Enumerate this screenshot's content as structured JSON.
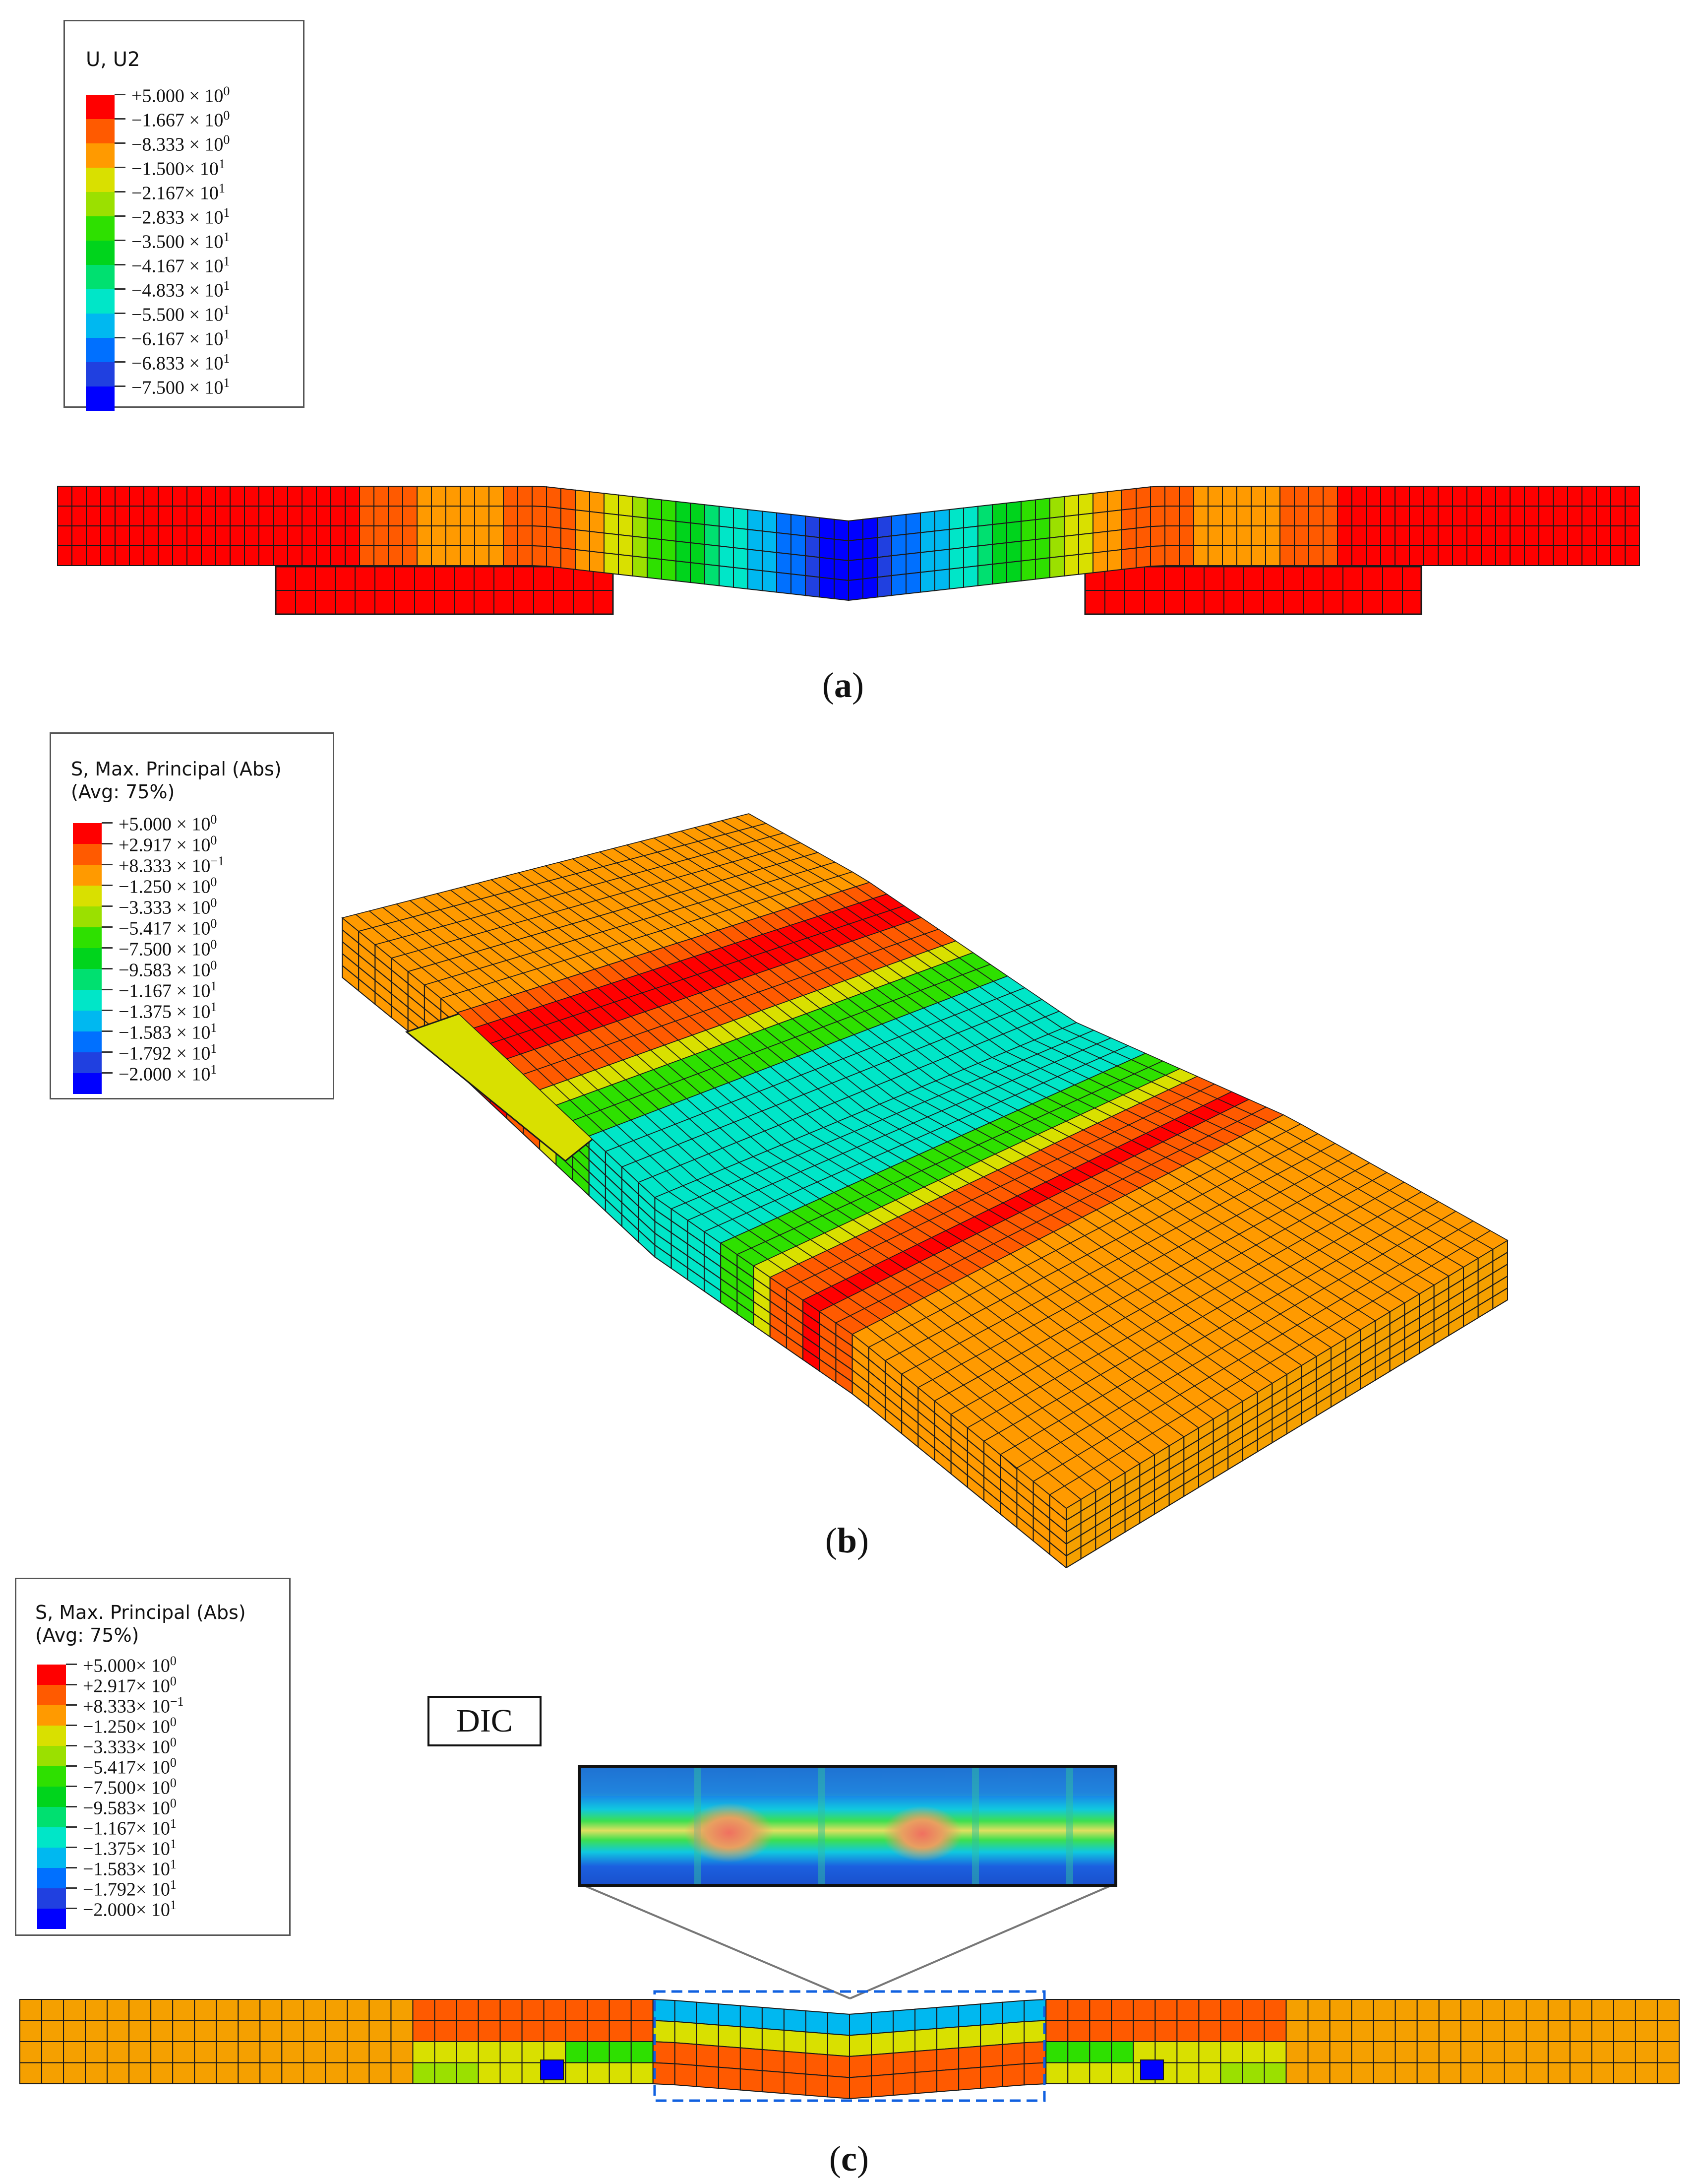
{
  "panel_a": {
    "legend_title": "U, U2",
    "legend_entries": [
      {
        "label": "+5.000 × 10",
        "exp": "0"
      },
      {
        "label": "−1.667 × 10",
        "exp": "0"
      },
      {
        "label": "−8.333 × 10",
        "exp": "0"
      },
      {
        "label": "−1.500× 10",
        "exp": "1"
      },
      {
        "label": "−2.167× 10",
        "exp": "1"
      },
      {
        "label": "−2.833 × 10",
        "exp": "1"
      },
      {
        "label": "−3.500 × 10",
        "exp": "1"
      },
      {
        "label": "−4.167 × 10",
        "exp": "1"
      },
      {
        "label": "−4.833 × 10",
        "exp": "1"
      },
      {
        "label": "−5.500 × 10",
        "exp": "1"
      },
      {
        "label": "−6.167 × 10",
        "exp": "1"
      },
      {
        "label": "−6.833 × 10",
        "exp": "1"
      },
      {
        "label": "−7.500 × 10",
        "exp": "1"
      }
    ],
    "label": "a"
  },
  "panel_b": {
    "legend_title": "S, Max. Principal (Abs)\n(Avg: 75%)",
    "legend_entries": [
      {
        "label": "+5.000 × 10",
        "exp": "0"
      },
      {
        "label": "+2.917 × 10",
        "exp": "0"
      },
      {
        "label": "+8.333 × 10",
        "exp": "−1"
      },
      {
        "label": "−1.250 × 10",
        "exp": "0"
      },
      {
        "label": "−3.333 × 10",
        "exp": "0"
      },
      {
        "label": "−5.417 × 10",
        "exp": "0"
      },
      {
        "label": "−7.500 × 10",
        "exp": "0"
      },
      {
        "label": "−9.583 × 10",
        "exp": "0"
      },
      {
        "label": "−1.167 × 10",
        "exp": "1"
      },
      {
        "label": "−1.375 × 10",
        "exp": "1"
      },
      {
        "label": "−1.583 × 10",
        "exp": "1"
      },
      {
        "label": "−1.792 × 10",
        "exp": "1"
      },
      {
        "label": "−2.000 × 10",
        "exp": "1"
      }
    ],
    "label": "b"
  },
  "panel_c": {
    "legend_title": "S, Max. Principal (Abs)\n(Avg: 75%)",
    "legend_entries": [
      {
        "label": "+5.000× 10",
        "exp": "0"
      },
      {
        "label": "+2.917× 10",
        "exp": "0"
      },
      {
        "label": "+8.333× 10",
        "exp": "−1"
      },
      {
        "label": "−1.250× 10",
        "exp": "0"
      },
      {
        "label": "−3.333× 10",
        "exp": "0"
      },
      {
        "label": "−5.417× 10",
        "exp": "0"
      },
      {
        "label": "−7.500× 10",
        "exp": "0"
      },
      {
        "label": "−9.583× 10",
        "exp": "0"
      },
      {
        "label": "−1.167× 10",
        "exp": "1"
      },
      {
        "label": "−1.375× 10",
        "exp": "1"
      },
      {
        "label": "−1.583× 10",
        "exp": "1"
      },
      {
        "label": "−1.792× 10",
        "exp": "1"
      },
      {
        "label": "−2.000× 10",
        "exp": "1"
      }
    ],
    "dic_label": "DIC",
    "label": "c"
  },
  "colors": {
    "scale": [
      "#ff0000",
      "#ff5a00",
      "#ff9a00",
      "#d9e000",
      "#9be000",
      "#2ee000",
      "#00d41c",
      "#00e070",
      "#00e6c8",
      "#00b8f0",
      "#0070ff",
      "#2040e0",
      "#0000ff"
    ],
    "orange_mesh": "#f5a000",
    "grid": "#1a1a1a",
    "dic_frame": "#1060e0"
  }
}
